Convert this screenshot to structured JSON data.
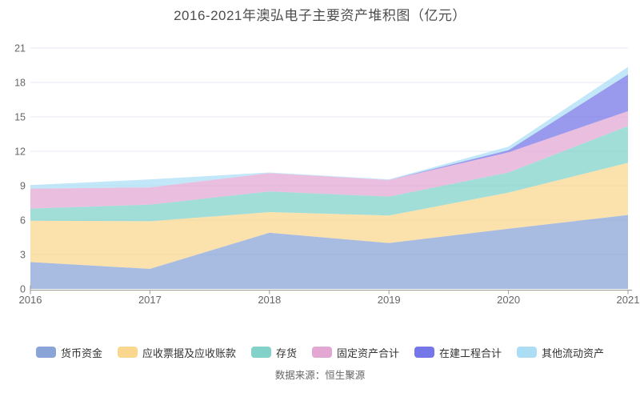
{
  "title": "2016-2021年澳弘电子主要资产堆积图（亿元）",
  "caption": "数据来源：恒生聚源",
  "theme": {
    "background": "#ffffff",
    "title_color": "#4d4d4d",
    "axis_line_color": "#999999",
    "tick_label_color": "#666666",
    "grid_line_color": "#e4e9f4",
    "legend_text_color": "#333333",
    "fill_opacity": 0.74
  },
  "chart_data": {
    "type": "area",
    "stacked": true,
    "title": "2016-2021年澳弘电子主要资产堆积图（亿元）",
    "categories": [
      "2016",
      "2017",
      "2018",
      "2019",
      "2020",
      "2021"
    ],
    "series": [
      {
        "name": "货币资金",
        "color": "#8aa4d8",
        "values": [
          2.35,
          1.75,
          4.9,
          4.0,
          5.25,
          6.45
        ]
      },
      {
        "name": "应收票据及应收账款",
        "color": "#fad78f",
        "values": [
          3.6,
          4.15,
          1.8,
          2.4,
          3.15,
          4.55
        ]
      },
      {
        "name": "存货",
        "color": "#82d2ca",
        "values": [
          1.05,
          1.45,
          1.8,
          1.65,
          1.75,
          3.2
        ]
      },
      {
        "name": "固定资产合计",
        "color": "#e3a7d4",
        "values": [
          1.75,
          1.5,
          1.6,
          1.45,
          1.75,
          1.3
        ]
      },
      {
        "name": "在建工程合计",
        "color": "#7577e8",
        "values": [
          0.0,
          0.0,
          0.0,
          0.0,
          0.2,
          3.2
        ]
      },
      {
        "name": "其他流动资产",
        "color": "#abdef5",
        "values": [
          0.3,
          0.7,
          0.05,
          0.05,
          0.3,
          0.65
        ]
      }
    ],
    "xlabel": "",
    "ylabel": "",
    "ylim": [
      0,
      21
    ],
    "yticks": [
      0,
      3,
      6,
      9,
      12,
      15,
      18,
      21
    ],
    "grid": true,
    "legend_position": "bottom",
    "unit": "亿元"
  }
}
